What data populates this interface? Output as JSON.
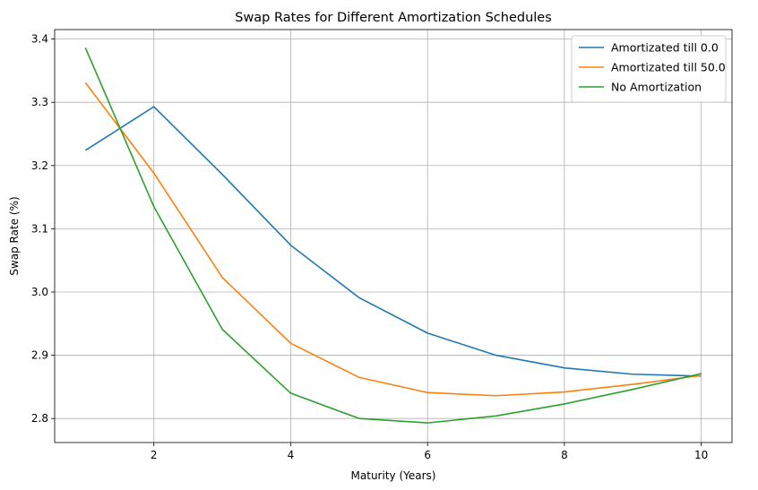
{
  "chart_data": {
    "type": "line",
    "title": "Swap Rates for Different Amortization Schedules",
    "xlabel": "Maturity (Years)",
    "ylabel": "Swap Rate (%)",
    "x": [
      1,
      2,
      3,
      4,
      5,
      6,
      7,
      8,
      9,
      10
    ],
    "xlim": [
      0.55,
      10.45
    ],
    "ylim": [
      2.762,
      3.415
    ],
    "xticks": [
      2,
      4,
      6,
      8,
      10
    ],
    "yticks": [
      2.8,
      2.9,
      3.0,
      3.1,
      3.2,
      3.3,
      3.4
    ],
    "xtick_labels": [
      "2",
      "4",
      "6",
      "8",
      "10"
    ],
    "ytick_labels": [
      "2.8",
      "2.9",
      "3.0",
      "3.1",
      "3.2",
      "3.3",
      "3.4"
    ],
    "grid": true,
    "legend_position": "top-right",
    "series": [
      {
        "name": "Amortizated till 0.0",
        "color": "#1f77b4",
        "values": [
          3.224,
          3.293,
          3.186,
          3.074,
          2.991,
          2.935,
          2.9,
          2.88,
          2.87,
          2.867
        ]
      },
      {
        "name": "Amortizated till 50.0",
        "color": "#ff7f0e",
        "values": [
          3.331,
          3.188,
          3.023,
          2.919,
          2.865,
          2.841,
          2.836,
          2.842,
          2.854,
          2.868
        ]
      },
      {
        "name": "No Amortization",
        "color": "#2ca02c",
        "values": [
          3.386,
          3.135,
          2.941,
          2.84,
          2.8,
          2.793,
          2.804,
          2.823,
          2.846,
          2.871
        ]
      }
    ]
  }
}
